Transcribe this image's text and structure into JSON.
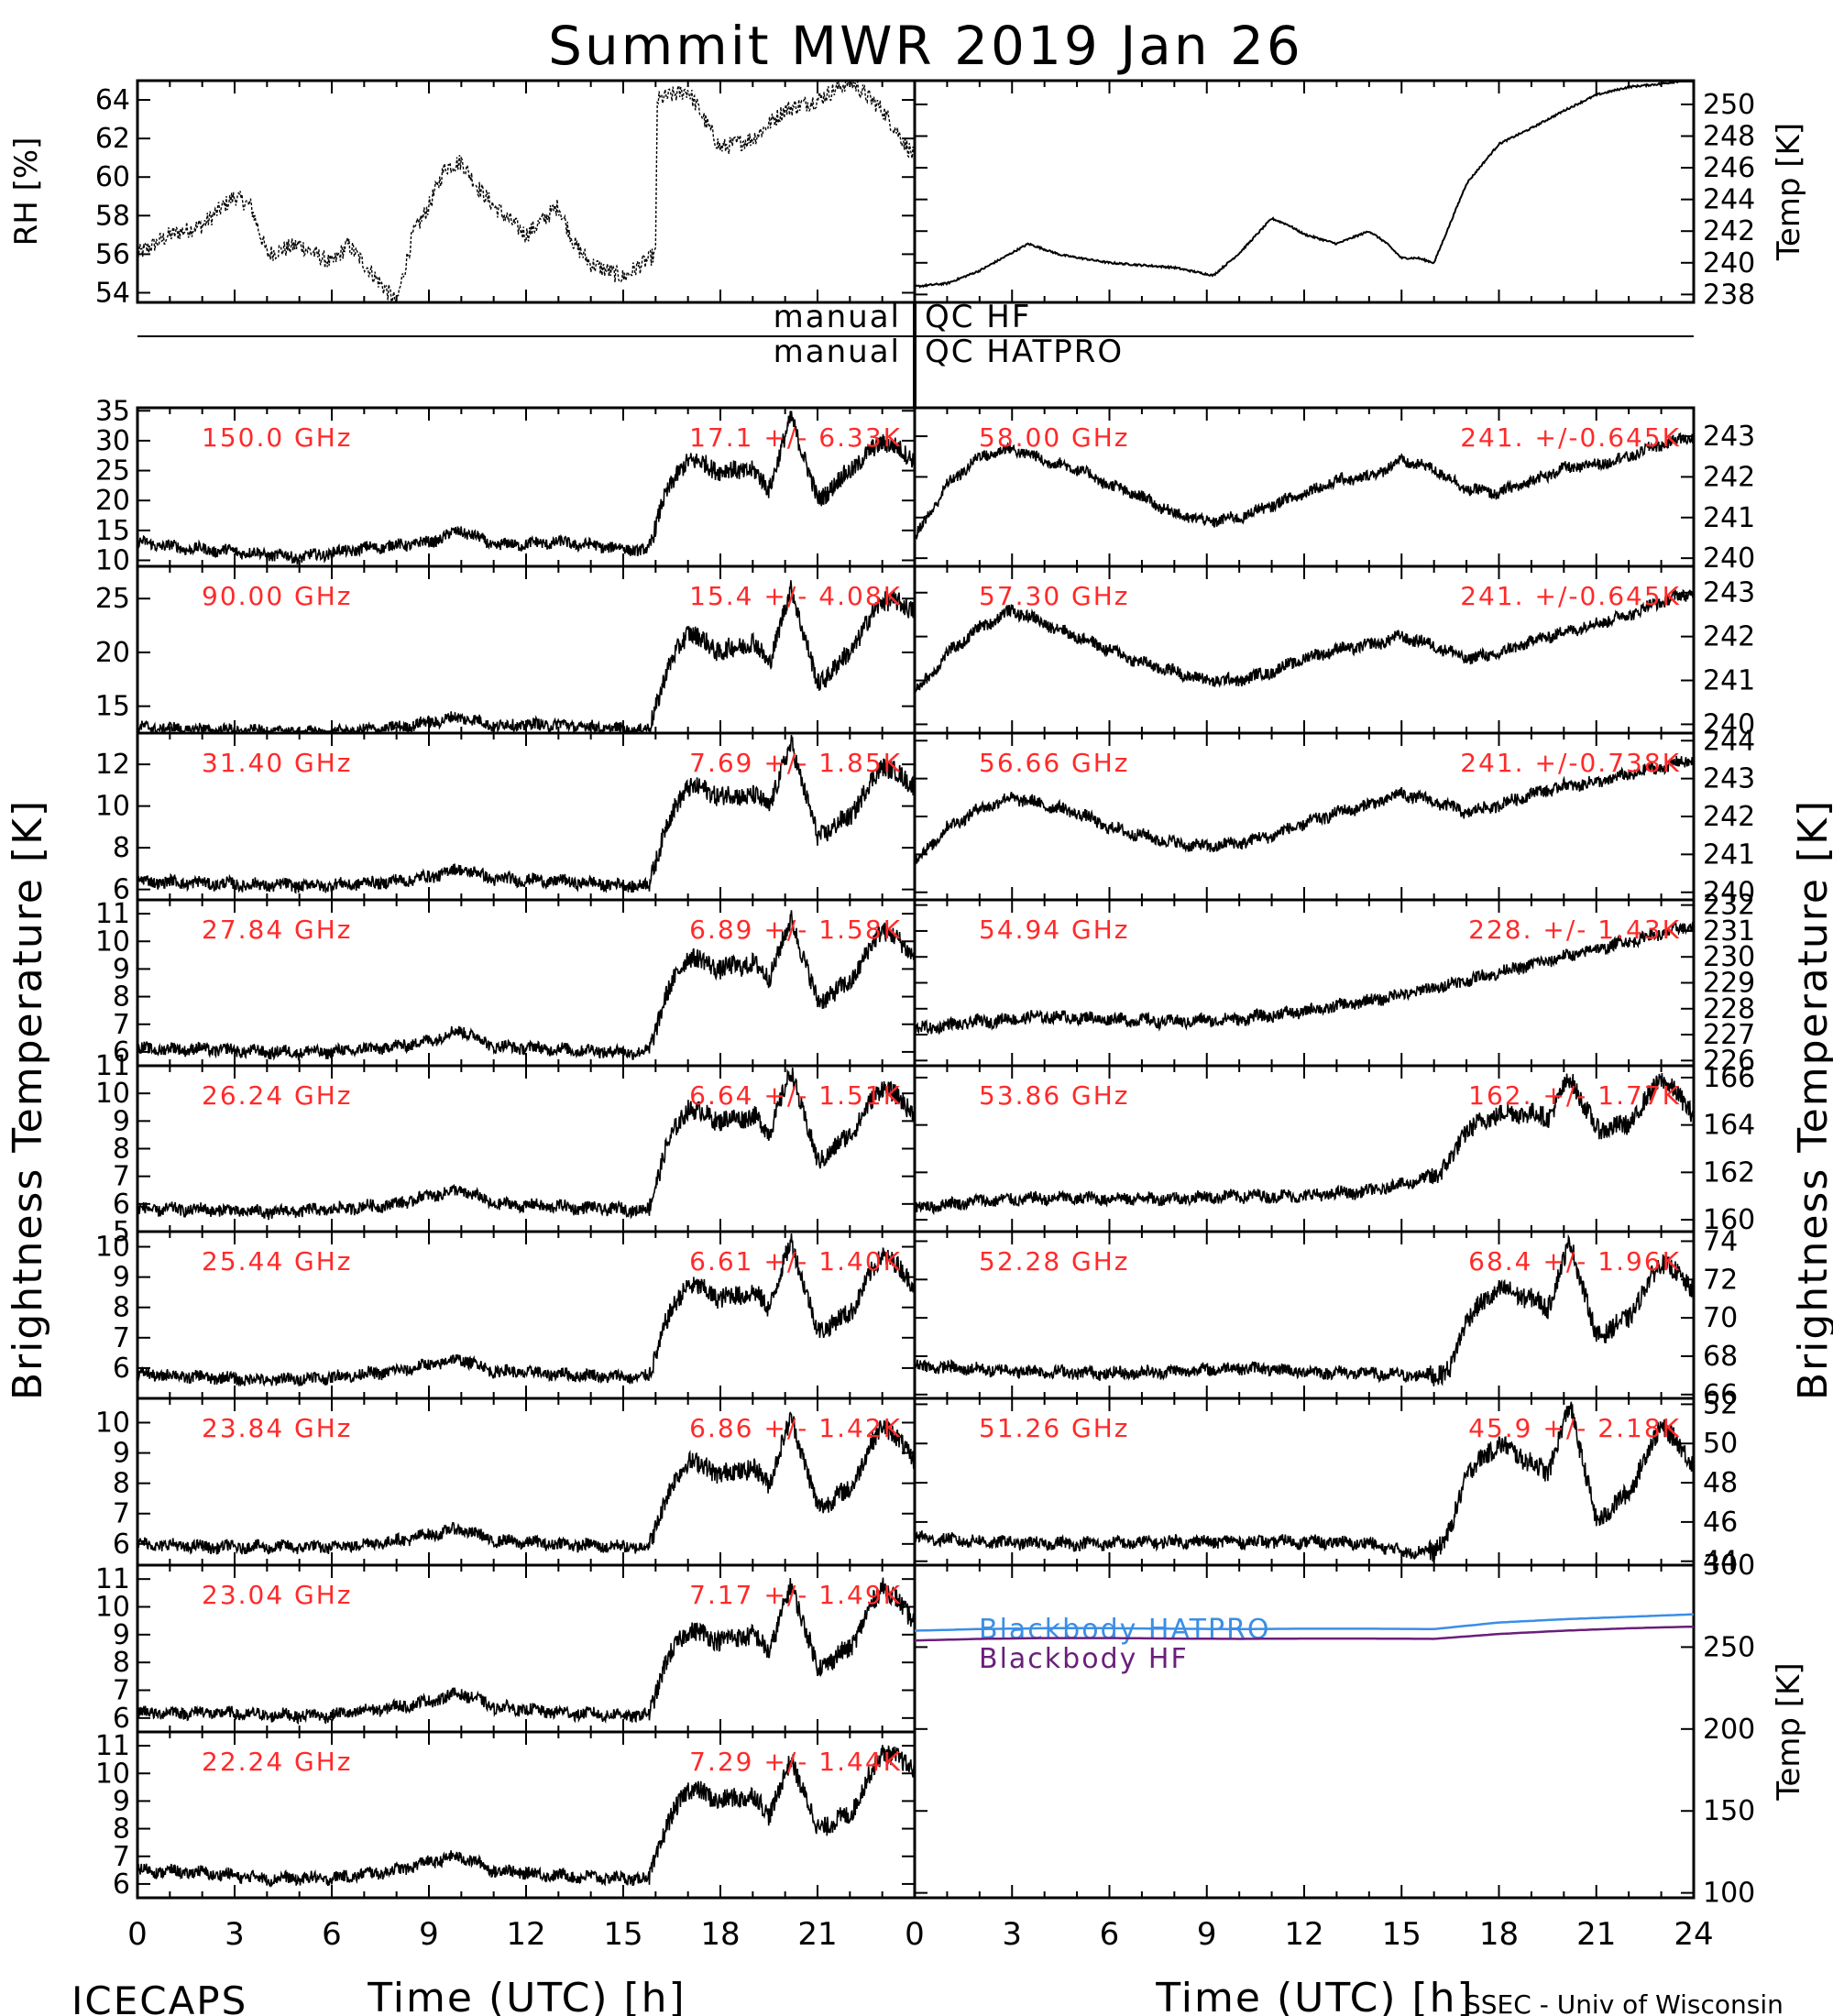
{
  "page": {
    "title": "Summit MWR 2019 Jan 26",
    "left_ylabel": "Brightness Temperature [K]",
    "right_ylabel": "Brightness Temperature [K]",
    "xlabel_left": "Time (UTC) [h]",
    "xlabel_right": "Time (UTC) [h]",
    "footer_left": "ICECAPS",
    "footer_right": "SSEC - Univ of Wisconsin",
    "qc_hf_left": "manual",
    "qc_hf_right": "QC HF",
    "qc_hatpro_left": "manual",
    "qc_hatpro_right": "QC HATPRO",
    "xticks_left": [
      "0",
      "3",
      "6",
      "9",
      "12",
      "15",
      "18",
      "21"
    ],
    "xticks_right": [
      "0",
      "3",
      "6",
      "9",
      "12",
      "15",
      "18",
      "21",
      "24"
    ]
  },
  "colors": {
    "red_label": "#ff2a2a",
    "hatpro": "#3a8ee6",
    "hf": "#6a1f7a",
    "trace": "#000000"
  },
  "chart_data": [
    {
      "type": "line",
      "id": "rh",
      "ylabel": "RH [%]",
      "ylim": [
        53.5,
        65
      ],
      "yticks": [
        54,
        56,
        58,
        60,
        62,
        64
      ],
      "x": [
        0,
        1,
        2,
        3,
        3.5,
        4,
        5,
        6,
        6.5,
        7,
        7.5,
        8,
        8.5,
        9,
        9.5,
        10,
        10.5,
        11,
        12,
        13,
        13.5,
        14,
        15,
        16,
        16.05,
        17,
        18,
        19,
        20,
        21,
        22,
        23,
        24
      ],
      "y": [
        56,
        57,
        57.5,
        59,
        58.5,
        56,
        56.5,
        55.5,
        56.5,
        55.5,
        54.5,
        53.5,
        57,
        58.5,
        60.5,
        60.8,
        59.5,
        58.5,
        57,
        58.5,
        56.5,
        55.5,
        54.8,
        56,
        64,
        64.5,
        61.5,
        62,
        63.5,
        64,
        65,
        63.5,
        61
      ]
    },
    {
      "type": "line",
      "id": "temp",
      "ylabel": "Temp [K]",
      "ylim": [
        237.5,
        251.5
      ],
      "yticks": [
        238,
        240,
        242,
        244,
        246,
        248,
        250
      ],
      "x": [
        0,
        1,
        2,
        3.5,
        4.5,
        6,
        8,
        9.2,
        10,
        11,
        11.5,
        12,
        13,
        14,
        14.5,
        15,
        15.5,
        16,
        17,
        18,
        19,
        20,
        21,
        22,
        23,
        24
      ],
      "y": [
        238.5,
        238.7,
        239.5,
        241.2,
        240.5,
        240,
        239.7,
        239.2,
        240.6,
        242.8,
        242.4,
        241.8,
        241.2,
        242,
        241.3,
        240.3,
        240.3,
        240,
        245,
        247.5,
        248.5,
        249.6,
        250.6,
        251.1,
        251.3,
        251.6
      ]
    },
    {
      "type": "scatter",
      "id": "c150",
      "freq": "150.0 GHz",
      "stat": "17.1 +/- 6.33K",
      "ylim": [
        9,
        35.5
      ],
      "yticks": [
        10,
        15,
        20,
        25,
        30,
        35
      ],
      "x": [
        0,
        1.5,
        3,
        5,
        7,
        9,
        10,
        11,
        13,
        15,
        15.8,
        16.2,
        17,
        18,
        19,
        19.5,
        20.2,
        21,
        22,
        23,
        24
      ],
      "y": [
        13,
        12,
        11.5,
        10.5,
        12,
        13,
        15,
        12.5,
        13,
        12,
        11.5,
        20,
        27,
        25,
        25,
        22,
        34,
        20,
        25,
        30,
        27
      ]
    },
    {
      "type": "scatter",
      "id": "c90",
      "freq": "90.00 GHz",
      "stat": "15.4 +/- 4.08K",
      "ylim": [
        12.5,
        28
      ],
      "yticks": [
        15,
        20,
        25
      ],
      "x": [
        0,
        2,
        4,
        6,
        8,
        9,
        10,
        11,
        13,
        15,
        15.8,
        16.3,
        17,
        18,
        19,
        19.5,
        20.2,
        21,
        22,
        23,
        24
      ],
      "y": [
        13,
        12.8,
        12.6,
        12.5,
        13,
        13.5,
        14,
        13.2,
        13.3,
        12.8,
        12.8,
        18,
        22,
        20,
        21,
        19,
        26,
        17,
        20,
        25,
        24
      ]
    },
    {
      "type": "scatter",
      "id": "c3140",
      "freq": "31.40 GHz",
      "stat": "7.69 +/- 1.85K",
      "ylim": [
        5.5,
        13.5
      ],
      "yticks": [
        6,
        8,
        10,
        12
      ],
      "x": [
        0,
        2,
        4,
        6,
        8,
        9,
        10,
        11,
        13,
        15,
        15.8,
        16.3,
        17,
        18,
        19,
        19.5,
        20.2,
        21,
        22,
        23,
        24
      ],
      "y": [
        6.4,
        6.3,
        6.2,
        6.2,
        6.4,
        6.6,
        7,
        6.5,
        6.4,
        6.2,
        6.2,
        9,
        11,
        10.5,
        10.5,
        10,
        13,
        8.5,
        9.5,
        12,
        11
      ]
    },
    {
      "type": "scatter",
      "id": "c2784",
      "freq": "27.84 GHz",
      "stat": "6.89 +/- 1.58K",
      "ylim": [
        5.5,
        11.5
      ],
      "yticks": [
        6,
        7,
        8,
        9,
        10,
        11
      ],
      "x": [
        0,
        2,
        4,
        6,
        8,
        9,
        10,
        11,
        13,
        15,
        15.8,
        16.3,
        17,
        18,
        19,
        19.5,
        20.2,
        21,
        22,
        23,
        24
      ],
      "y": [
        6.1,
        6.1,
        6,
        6,
        6.2,
        6.4,
        6.8,
        6.2,
        6.1,
        6,
        6,
        8,
        9.5,
        9,
        9.2,
        8.7,
        10.8,
        7.8,
        8.5,
        10.5,
        9.5
      ]
    },
    {
      "type": "scatter",
      "id": "c2624",
      "freq": "26.24 GHz",
      "stat": "6.64 +/- 1.51K",
      "ylim": [
        5,
        11
      ],
      "yticks": [
        5,
        6,
        7,
        8,
        9,
        10,
        11
      ],
      "x": [
        0,
        2,
        4,
        6,
        8,
        9,
        10,
        11,
        13,
        15,
        15.8,
        16.3,
        17,
        18,
        19,
        19.5,
        20.2,
        21,
        22,
        23,
        24
      ],
      "y": [
        5.8,
        5.8,
        5.7,
        5.8,
        6,
        6.3,
        6.5,
        6,
        5.9,
        5.8,
        5.8,
        8,
        9.5,
        9,
        9.2,
        8.6,
        10.8,
        7.5,
        8.5,
        10.3,
        9.3
      ]
    },
    {
      "type": "scatter",
      "id": "c2544",
      "freq": "25.44 GHz",
      "stat": "6.61 +/- 1.40K",
      "ylim": [
        5,
        10.5
      ],
      "yticks": [
        6,
        7,
        8,
        9,
        10
      ],
      "x": [
        0,
        2,
        4,
        6,
        8,
        9,
        10,
        11,
        13,
        15,
        15.8,
        16.3,
        17,
        18,
        19,
        19.5,
        20.2,
        21,
        22,
        23,
        24
      ],
      "y": [
        5.8,
        5.7,
        5.6,
        5.7,
        5.9,
        6.1,
        6.3,
        5.9,
        5.8,
        5.7,
        5.7,
        7.5,
        8.8,
        8.3,
        8.5,
        8,
        10.2,
        7.2,
        7.8,
        9.8,
        8.8
      ]
    },
    {
      "type": "scatter",
      "id": "c2384",
      "freq": "23.84 GHz",
      "stat": "6.86 +/- 1.42K",
      "ylim": [
        5.3,
        10.8
      ],
      "yticks": [
        6,
        7,
        8,
        9,
        10
      ],
      "x": [
        0,
        2,
        4,
        6,
        8,
        9,
        10,
        11,
        13,
        15,
        15.8,
        16.3,
        17,
        18,
        19,
        19.5,
        20.2,
        21,
        22,
        23,
        24
      ],
      "y": [
        6,
        5.9,
        5.9,
        5.9,
        6.1,
        6.3,
        6.5,
        6.1,
        6,
        5.9,
        5.9,
        7.5,
        8.8,
        8.3,
        8.5,
        8,
        10.2,
        7.2,
        7.8,
        10,
        8.8
      ]
    },
    {
      "type": "scatter",
      "id": "c2304",
      "freq": "23.04 GHz",
      "stat": "7.17 +/- 1.49K",
      "ylim": [
        5.5,
        11.5
      ],
      "yticks": [
        6,
        7,
        8,
        9,
        10,
        11
      ],
      "x": [
        0,
        2,
        4,
        6,
        8,
        9,
        10,
        11,
        13,
        15,
        15.8,
        16.3,
        17,
        18,
        19,
        19.5,
        20.2,
        21,
        22,
        23,
        24
      ],
      "y": [
        6.2,
        6.2,
        6.1,
        6.1,
        6.4,
        6.6,
        6.9,
        6.4,
        6.2,
        6.1,
        6.1,
        8,
        9.2,
        8.8,
        9,
        8.4,
        10.8,
        7.8,
        8.5,
        10.8,
        9.5
      ]
    },
    {
      "type": "scatter",
      "id": "c2224",
      "freq": "22.24 GHz",
      "stat": "7.29 +/- 1.44K",
      "ylim": [
        5.5,
        11.5
      ],
      "yticks": [
        6,
        7,
        8,
        9,
        10,
        11
      ],
      "x": [
        0,
        2,
        4,
        6,
        8,
        9,
        10,
        11,
        13,
        15,
        15.8,
        16.3,
        17,
        18,
        19,
        19.5,
        20.2,
        21,
        22,
        23,
        24
      ],
      "y": [
        6.5,
        6.4,
        6.2,
        6.2,
        6.5,
        6.8,
        7,
        6.5,
        6.3,
        6.2,
        6.2,
        8,
        9.5,
        9,
        9.2,
        8.5,
        10.5,
        8,
        8.5,
        10.8,
        10.2
      ]
    },
    {
      "type": "scatter",
      "id": "c5800",
      "freq": "58.00 GHz",
      "stat": "241. +/-0.645K",
      "ylim": [
        239.8,
        243.7
      ],
      "yticks": [
        240,
        241,
        242,
        243
      ],
      "x": [
        0,
        1,
        2,
        3,
        4,
        5,
        6,
        7,
        8,
        9,
        10,
        11,
        12,
        13,
        14,
        15,
        16,
        17,
        18,
        19,
        20,
        21,
        22,
        23,
        24
      ],
      "y": [
        240.5,
        241.8,
        242.5,
        242.7,
        242.4,
        242.2,
        241.8,
        241.5,
        241.1,
        240.9,
        241,
        241.3,
        241.6,
        241.9,
        242,
        242.4,
        242.2,
        241.7,
        241.6,
        241.9,
        242.2,
        242.3,
        242.5,
        242.8,
        243
      ]
    },
    {
      "type": "scatter",
      "id": "c5730",
      "freq": "57.30 GHz",
      "stat": "241. +/-0.645K",
      "ylim": [
        239.8,
        243.6
      ],
      "yticks": [
        240,
        241,
        242,
        243
      ],
      "x": [
        0,
        1,
        2,
        3,
        4,
        5,
        6,
        7,
        8,
        9,
        10,
        11,
        12,
        13,
        14,
        15,
        16,
        17,
        18,
        19,
        20,
        21,
        22,
        23,
        24
      ],
      "y": [
        240.7,
        241.6,
        242.2,
        242.6,
        242.3,
        242,
        241.7,
        241.4,
        241.2,
        241,
        241,
        241.2,
        241.5,
        241.7,
        241.8,
        242,
        241.8,
        241.5,
        241.6,
        241.9,
        242.1,
        242.3,
        242.5,
        242.8,
        243
      ]
    },
    {
      "type": "scatter",
      "id": "c5666",
      "freq": "56.66 GHz",
      "stat": "241. +/-0.738K",
      "ylim": [
        239.8,
        244.2
      ],
      "yticks": [
        240,
        241,
        242,
        243,
        244
      ],
      "x": [
        0,
        1,
        2,
        3,
        4,
        5,
        6,
        7,
        8,
        9,
        10,
        11,
        12,
        13,
        14,
        15,
        16,
        17,
        18,
        19,
        20,
        21,
        22,
        23,
        24
      ],
      "y": [
        240.8,
        241.7,
        242.2,
        242.5,
        242.3,
        242.1,
        241.7,
        241.5,
        241.3,
        241.2,
        241.3,
        241.5,
        241.8,
        242.1,
        242.3,
        242.6,
        242.4,
        242.1,
        242.3,
        242.6,
        242.8,
        242.9,
        243.1,
        243.3,
        243.5
      ]
    },
    {
      "type": "scatter",
      "id": "c5494",
      "freq": "54.94 GHz",
      "stat": "228. +/- 1.43K",
      "ylim": [
        225.8,
        232.2
      ],
      "yticks": [
        226,
        227,
        228,
        229,
        230,
        231,
        232
      ],
      "x": [
        0,
        2,
        4,
        6,
        8,
        10,
        12,
        14,
        16,
        18,
        20,
        22,
        24
      ],
      "y": [
        227.2,
        227.5,
        227.7,
        227.6,
        227.5,
        227.6,
        227.9,
        228.3,
        228.8,
        229.4,
        230,
        230.6,
        231.2
      ]
    },
    {
      "type": "scatter",
      "id": "c5386",
      "freq": "53.86 GHz",
      "stat": "162. +/- 1.77K",
      "ylim": [
        159.5,
        166.5
      ],
      "yticks": [
        160,
        162,
        164,
        166
      ],
      "x": [
        0,
        2,
        4,
        6,
        8,
        10,
        12,
        14,
        15,
        16,
        16.5,
        17,
        18,
        19,
        19.5,
        20.2,
        21,
        22,
        23,
        24
      ],
      "y": [
        160.5,
        160.8,
        160.9,
        160.9,
        160.9,
        161,
        161,
        161.2,
        161.5,
        161.8,
        162.5,
        163.8,
        164.5,
        164.5,
        164.3,
        166,
        163.8,
        164,
        166,
        164.5
      ]
    },
    {
      "type": "scatter",
      "id": "c5228",
      "freq": "52.28 GHz",
      "stat": "68.4 +/- 1.96K",
      "ylim": [
        65.8,
        74.5
      ],
      "yticks": [
        66,
        68,
        70,
        72,
        74
      ],
      "x": [
        0,
        2,
        4,
        6,
        8,
        10,
        12,
        14,
        15,
        16,
        16.5,
        17,
        18,
        19,
        19.5,
        20.2,
        21,
        22,
        23,
        24
      ],
      "y": [
        67.5,
        67.3,
        67.2,
        67.1,
        67.2,
        67.4,
        67.2,
        67.1,
        67,
        67,
        67.3,
        70,
        71.5,
        71,
        70.5,
        74,
        69,
        70,
        73,
        71.5
      ]
    },
    {
      "type": "scatter",
      "id": "c5126",
      "freq": "51.26 GHz",
      "stat": "45.9 +/- 2.18K",
      "ylim": [
        43.8,
        52.3
      ],
      "yticks": [
        44,
        46,
        48,
        50,
        52
      ],
      "x": [
        0,
        2,
        4,
        6,
        8,
        10,
        12,
        14,
        15,
        16,
        16.5,
        17,
        18,
        19,
        19.5,
        20.2,
        21,
        22,
        23,
        24
      ],
      "y": [
        45.2,
        45,
        44.9,
        44.9,
        45,
        45,
        45,
        44.9,
        44.5,
        44.5,
        45.5,
        48.5,
        50,
        49,
        48.5,
        52,
        46,
        47.5,
        51,
        49
      ]
    },
    {
      "type": "line",
      "id": "blackbody",
      "ylabel": "Temp [K]",
      "ylim": [
        97,
        300
      ],
      "yticks": [
        100,
        150,
        200,
        250,
        300
      ],
      "series": [
        {
          "name": "Blackbody HATPRO",
          "x": [
            0,
            2,
            4,
            6,
            8,
            10,
            12,
            14,
            16,
            17,
            18,
            20,
            22,
            24
          ],
          "y": [
            260,
            261,
            261.5,
            261.5,
            261.2,
            261,
            261.2,
            261.2,
            261,
            263,
            265,
            267,
            268.5,
            270
          ]
        },
        {
          "name": "Blackbody HF",
          "x": [
            0,
            2,
            4,
            6,
            8,
            10,
            12,
            14,
            16,
            17,
            18,
            20,
            22,
            24
          ],
          "y": [
            254,
            255,
            255.5,
            255.5,
            255.2,
            255,
            255.2,
            255.2,
            255,
            256.5,
            258,
            260,
            261.5,
            262.5
          ]
        }
      ]
    }
  ]
}
